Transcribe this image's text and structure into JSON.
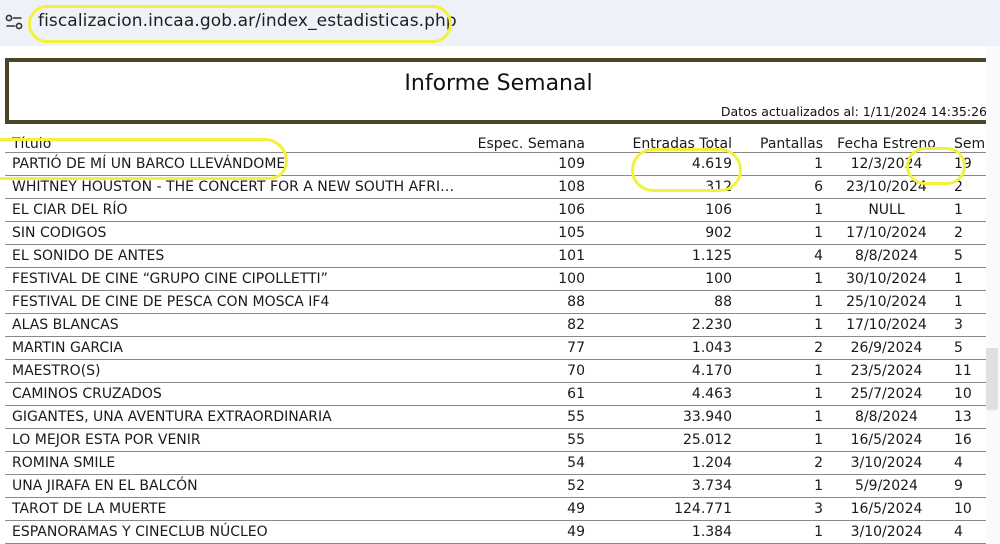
{
  "browser": {
    "url": "fiscalizacion.incaa.gob.ar/index_estadisticas.php",
    "site_icon": "tune-icon"
  },
  "report": {
    "title": "Informe Semanal",
    "updated": "Datos actualizados al: 1/11/2024 14:35:26"
  },
  "table": {
    "headers": [
      "Título",
      "Espec. Semana",
      "Entradas Total",
      "Pantallas",
      "Fecha Estreno",
      "Semana"
    ],
    "rows": [
      [
        "PARTIÓ DE MÍ UN BARCO LLEVÁNDOME",
        "109",
        "4.619",
        "1",
        "12/3/2024",
        "19"
      ],
      [
        "WHITNEY HOUSTON - THE CONCERT FOR A NEW SOUTH AFRICA ..",
        "108",
        "312",
        "6",
        "23/10/2024",
        "2"
      ],
      [
        "EL CIAR DEL RÍO",
        "106",
        "106",
        "1",
        "NULL",
        "1"
      ],
      [
        "SIN CODIGOS",
        "105",
        "902",
        "1",
        "17/10/2024",
        "2"
      ],
      [
        "EL SONIDO DE ANTES",
        "101",
        "1.125",
        "4",
        "8/8/2024",
        "5"
      ],
      [
        "FESTIVAL DE CINE “GRUPO CINE CIPOLLETTI”",
        "100",
        "100",
        "1",
        "30/10/2024",
        "1"
      ],
      [
        "FESTIVAL DE CINE DE PESCA CON MOSCA IF4",
        "88",
        "88",
        "1",
        "25/10/2024",
        "1"
      ],
      [
        "ALAS BLANCAS",
        "82",
        "2.230",
        "1",
        "17/10/2024",
        "3"
      ],
      [
        "MARTIN GARCIA",
        "77",
        "1.043",
        "2",
        "26/9/2024",
        "5"
      ],
      [
        "MAESTRO(S)",
        "70",
        "4.170",
        "1",
        "23/5/2024",
        "11"
      ],
      [
        "CAMINOS CRUZADOS",
        "61",
        "4.463",
        "1",
        "25/7/2024",
        "10"
      ],
      [
        "GIGANTES, UNA AVENTURA EXTRAORDINARIA",
        "55",
        "33.940",
        "1",
        "8/8/2024",
        "13"
      ],
      [
        "LO MEJOR ESTA POR VENIR",
        "55",
        "25.012",
        "1",
        "16/5/2024",
        "16"
      ],
      [
        "ROMINA SMILE",
        "54",
        "1.204",
        "2",
        "3/10/2024",
        "4"
      ],
      [
        "UNA JIRAFA EN EL BALCÓN",
        "52",
        "3.734",
        "1",
        "5/9/2024",
        "9"
      ],
      [
        "TAROT DE LA MUERTE",
        "49",
        "124.771",
        "3",
        "16/5/2024",
        "10"
      ],
      [
        "ESPANORAMAS Y CINECLUB NÚCLEO",
        "49",
        "1.384",
        "1",
        "3/10/2024",
        "4"
      ]
    ]
  },
  "annotations": {
    "highlight_color": "#f2f23a"
  }
}
